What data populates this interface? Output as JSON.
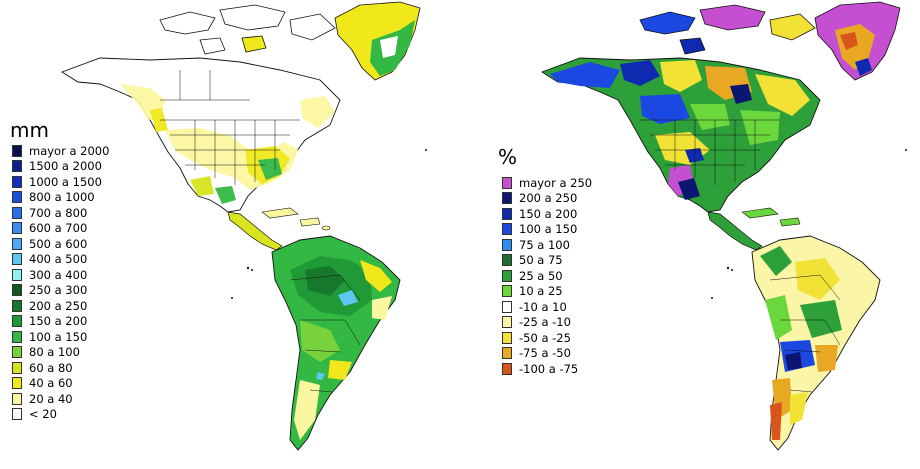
{
  "left_map": {
    "unit": "mm",
    "legend": [
      {
        "label": "mayor a 2000",
        "color": "#08104f"
      },
      {
        "label": "1500 a 2000",
        "color": "#0a1f8c"
      },
      {
        "label": "1000 a 1500",
        "color": "#1030c0"
      },
      {
        "label": "800 a 1000",
        "color": "#1a4de0"
      },
      {
        "label": "700 a 800",
        "color": "#2770ec"
      },
      {
        "label": "600 a 700",
        "color": "#3b8cf0"
      },
      {
        "label": "500 a 600",
        "color": "#4fa8f2"
      },
      {
        "label": "400 a 500",
        "color": "#5cc8f2"
      },
      {
        "label": "300 a 400",
        "color": "#8ff0f2"
      },
      {
        "label": "250 a 300",
        "color": "#0f5a1e"
      },
      {
        "label": "200 a 250",
        "color": "#16782a"
      },
      {
        "label": "150 a 200",
        "color": "#1f9a36"
      },
      {
        "label": "100 a 150",
        "color": "#34b844"
      },
      {
        "label": "80 a 100",
        "color": "#78d23c"
      },
      {
        "label": "60 a 80",
        "color": "#d8e41e"
      },
      {
        "label": "40 a 60",
        "color": "#f0e81a"
      },
      {
        "label": "20 a 40",
        "color": "#fbf7a0"
      },
      {
        "label": "< 20",
        "color": "#ffffff"
      }
    ]
  },
  "right_map": {
    "unit": "%",
    "legend": [
      {
        "label": "mayor a 250",
        "color": "#c44fd0"
      },
      {
        "label": "200 a 250",
        "color": "#0a1670"
      },
      {
        "label": "150 a 200",
        "color": "#0f2ab0"
      },
      {
        "label": "100 a 150",
        "color": "#1a48e0"
      },
      {
        "label": "75 a 100",
        "color": "#2e8cf0"
      },
      {
        "label": "50 a 75",
        "color": "#1f7030"
      },
      {
        "label": "25 a 50",
        "color": "#2ea03a"
      },
      {
        "label": "10 a 25",
        "color": "#6ad83c"
      },
      {
        "label": "-10 a 10",
        "color": "#ffffff"
      },
      {
        "label": "-25 a -10",
        "color": "#fbf5a8"
      },
      {
        "label": "-50 a -25",
        "color": "#f2e236"
      },
      {
        "label": "-75 a -50",
        "color": "#e8a824"
      },
      {
        "label": "-100 a -75",
        "color": "#d8561c"
      }
    ]
  }
}
